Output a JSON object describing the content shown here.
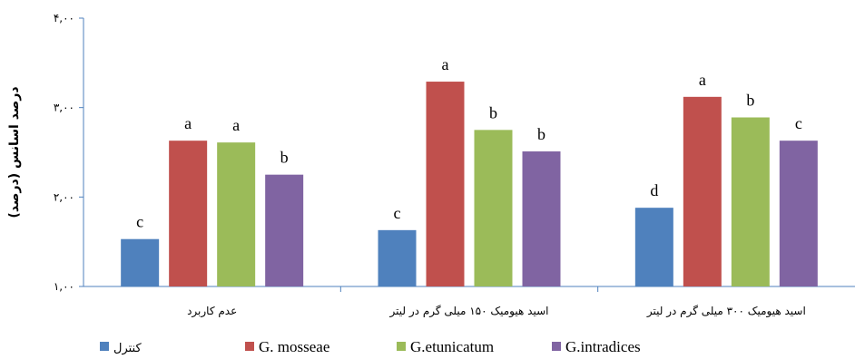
{
  "chart_data": {
    "type": "bar",
    "ylabel": "درصد اسانس (درصد)",
    "ylim": [
      1,
      4
    ],
    "yticks": [
      "۱,۰۰",
      "۲,۰۰",
      "۳,۰۰",
      "۴,۰۰"
    ],
    "categories": [
      "عدم کاربرد",
      "اسید هیومیک ۱۵۰ میلی گرم در لیتر",
      "اسید هیومیک ۳۰۰ میلی گرم در لیتر"
    ],
    "series": [
      {
        "name": "کنترل",
        "color": "#4f81bd",
        "values": [
          1.53,
          1.63,
          1.88
        ],
        "labels": [
          "c",
          "c",
          "d"
        ]
      },
      {
        "name": "G. mosseae",
        "color": "#c0504d",
        "values": [
          2.63,
          3.29,
          3.12
        ],
        "labels": [
          "a",
          "a",
          "a"
        ]
      },
      {
        "name": "G.etunicatum",
        "color": "#9bbb59",
        "values": [
          2.61,
          2.75,
          2.89
        ],
        "labels": [
          "a",
          "b",
          "b"
        ]
      },
      {
        "name": "G.intradices",
        "color": "#8064a2",
        "values": [
          2.25,
          2.51,
          2.63
        ],
        "labels": [
          "b",
          "b",
          "c"
        ]
      }
    ],
    "legend_position": "bottom",
    "grid": false
  }
}
